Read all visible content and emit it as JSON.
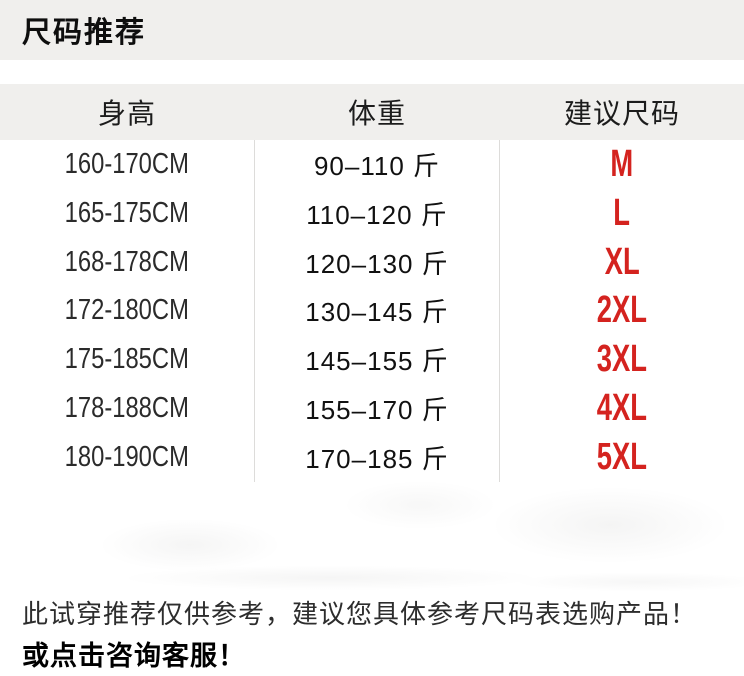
{
  "page": {
    "title": "尺码推荐"
  },
  "size_table": {
    "headers": {
      "height": "身高",
      "weight": "体重",
      "size": "建议尺码"
    },
    "rows": [
      {
        "height": "160-170CM",
        "weight": "90–110 斤",
        "size": "M"
      },
      {
        "height": "165-175CM",
        "weight": "110–120 斤",
        "size": "L"
      },
      {
        "height": "168-178CM",
        "weight": "120–130 斤",
        "size": "XL"
      },
      {
        "height": "172-180CM",
        "weight": "130–145 斤",
        "size": "2XL"
      },
      {
        "height": "175-185CM",
        "weight": "145–155 斤",
        "size": "3XL"
      },
      {
        "height": "178-188CM",
        "weight": "155–170 斤",
        "size": "4XL"
      },
      {
        "height": "180-190CM",
        "weight": "170–185 斤",
        "size": "5XL"
      }
    ]
  },
  "footer": {
    "note": "此试穿推荐仅供参考，建议您具体参考尺码表选购产品！",
    "cta": "或点击咨询客服！"
  },
  "colors": {
    "accent_red": "#d4231f",
    "panel_gray": "#f0efed",
    "divider_gray": "#dddcda",
    "text_dark": "#1a1a1a"
  }
}
